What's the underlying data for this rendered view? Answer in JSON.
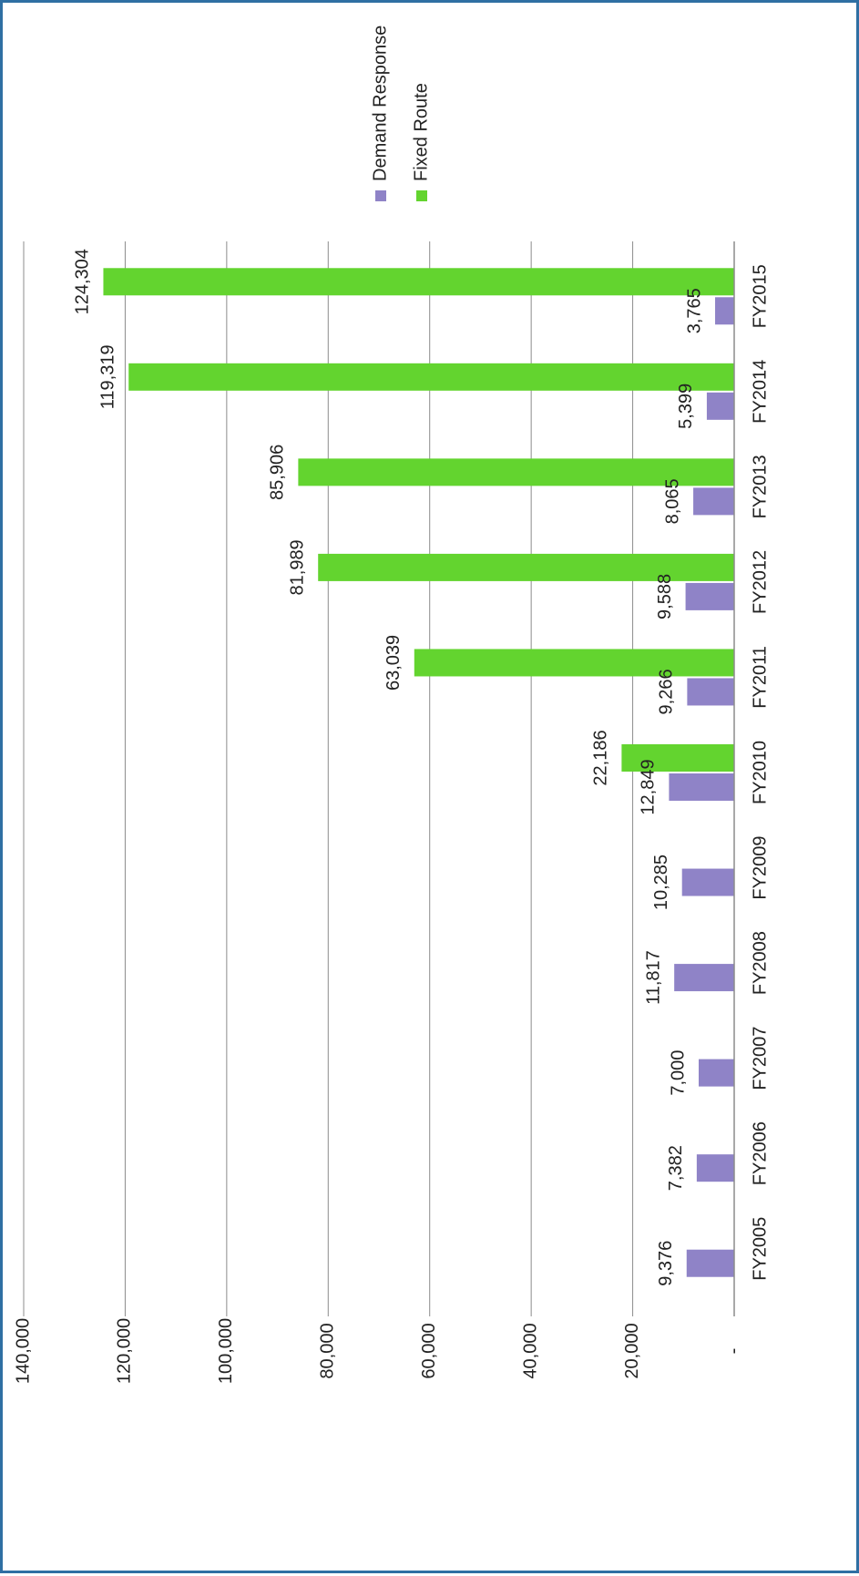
{
  "chart_data": {
    "type": "bar",
    "orientation": "rotated-90-clockwise",
    "categories": [
      "FY2005",
      "FY2006",
      "FY2007",
      "FY2008",
      "FY2009",
      "FY2010",
      "FY2011",
      "FY2012",
      "FY2013",
      "FY2014",
      "FY2015"
    ],
    "series": [
      {
        "name": "Demand Response",
        "color": "#8f83c7",
        "values": [
          9376,
          7382,
          7000,
          11817,
          10285,
          12849,
          9266,
          9588,
          8065,
          5399,
          3765
        ],
        "labels": [
          "9,376",
          "7,382",
          "7,000",
          "11,817",
          "10,285",
          "12,849",
          "9,266",
          "9,588",
          "8,065",
          "5,399",
          "3,765"
        ]
      },
      {
        "name": "Fixed Route",
        "color": "#63d42f",
        "values": [
          null,
          null,
          null,
          null,
          null,
          22186,
          63039,
          81989,
          85906,
          119319,
          124304
        ],
        "labels": [
          null,
          null,
          null,
          null,
          null,
          "22,186",
          "63,039",
          "81,989",
          "85,906",
          "119,319",
          "124,304"
        ]
      }
    ],
    "ylim": [
      0,
      140000
    ],
    "yticks": [
      0,
      20000,
      40000,
      60000,
      80000,
      100000,
      120000,
      140000
    ],
    "ytick_labels": [
      "-",
      "20,000",
      "40,000",
      "60,000",
      "80,000",
      "100,000",
      "120,000",
      "140,000"
    ],
    "grid": true,
    "legend_position": "right",
    "title": "",
    "xlabel": "",
    "ylabel": ""
  }
}
